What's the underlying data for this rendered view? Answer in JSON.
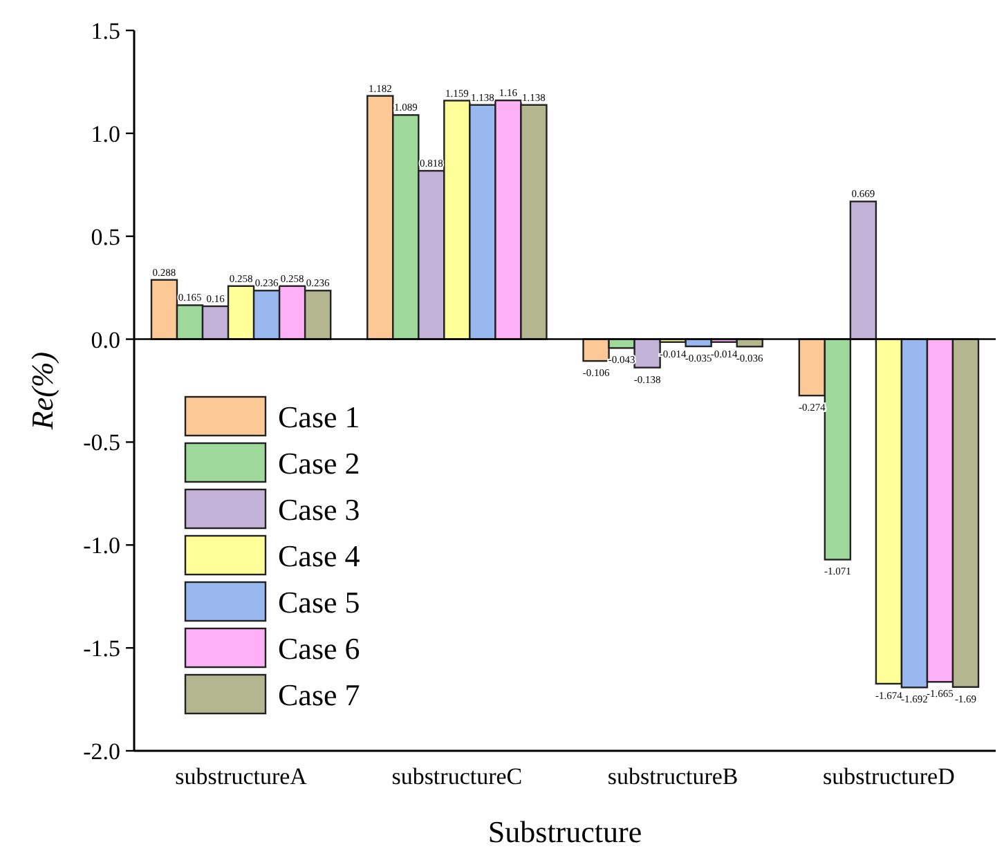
{
  "chart_data": {
    "type": "bar",
    "xlabel": "Substructure",
    "ylabel": "Re(%)",
    "categories": [
      "substructureA",
      "substructureC",
      "substructureB",
      "substructureD"
    ],
    "series": [
      {
        "name": "Case 1",
        "color": "#fcc896",
        "values": [
          0.288,
          1.182,
          -0.106,
          -0.274
        ]
      },
      {
        "name": "Case 2",
        "color": "#9ed99b",
        "values": [
          0.165,
          1.089,
          -0.043,
          -1.071
        ]
      },
      {
        "name": "Case 3",
        "color": "#c3b3d8",
        "values": [
          0.16,
          0.818,
          -0.138,
          0.669
        ]
      },
      {
        "name": "Case 4",
        "color": "#ffff99",
        "values": [
          0.258,
          1.159,
          -0.014,
          -1.674
        ]
      },
      {
        "name": "Case 5",
        "color": "#99b8f0",
        "values": [
          0.236,
          1.138,
          -0.035,
          -1.692
        ]
      },
      {
        "name": "Case 6",
        "color": "#fdb0f5",
        "values": [
          0.258,
          1.16,
          -0.014,
          -1.665
        ]
      },
      {
        "name": "Case 7",
        "color": "#b4b690",
        "values": [
          0.236,
          1.138,
          -0.036,
          -1.69
        ]
      }
    ],
    "ylim": [
      -2,
      1.5
    ],
    "yticks": [
      {
        "value": -2,
        "label": "-2.0"
      },
      {
        "value": -1.5,
        "label": "-1.5"
      },
      {
        "value": -1,
        "label": "-1.0"
      },
      {
        "value": -0.5,
        "label": "-0.5"
      },
      {
        "value": 0,
        "label": "0.0"
      },
      {
        "value": 0.5,
        "label": "0.5"
      },
      {
        "value": 1,
        "label": "1.0"
      },
      {
        "value": 1.5,
        "label": "1.5"
      }
    ],
    "data_labels": true,
    "legend": "bottom left"
  }
}
